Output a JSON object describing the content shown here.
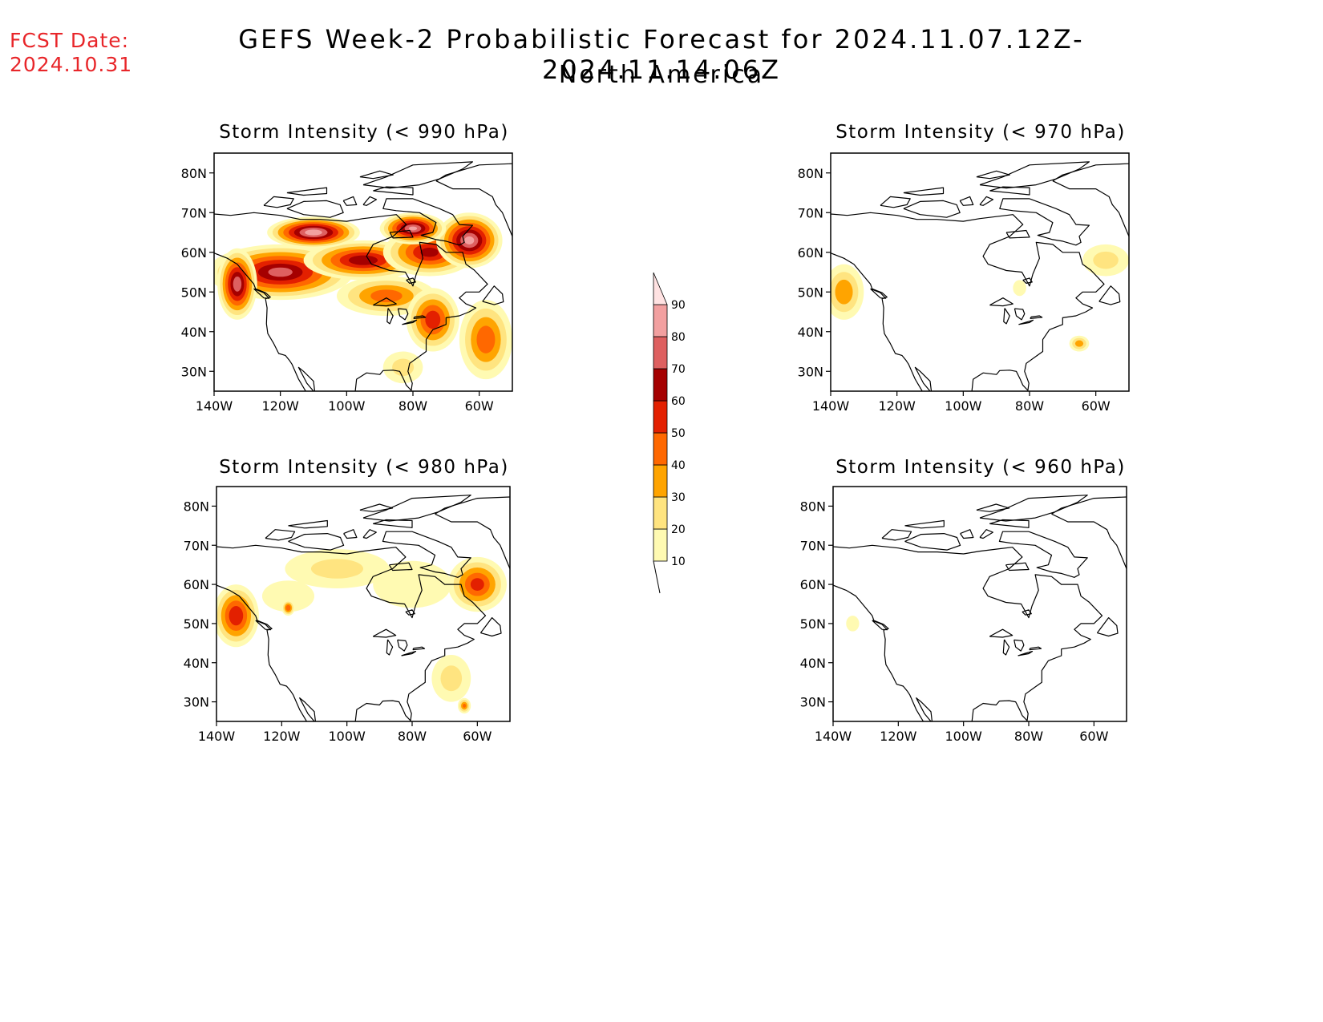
{
  "header": {
    "fcst_label": "FCST Date:",
    "fcst_date": "2024.10.31",
    "title": "GEFS Week-2 Probabilistic Forecast for 2024.11.07.12Z-2024.11.14.06Z",
    "subtitle": "North America"
  },
  "axes": {
    "lon_labels": [
      "140W",
      "120W",
      "100W",
      "80W",
      "60W"
    ],
    "lon_values": [
      -140,
      -120,
      -100,
      -80,
      -60
    ],
    "lat_labels": [
      "80N",
      "70N",
      "60N",
      "50N",
      "40N",
      "30N"
    ],
    "lat_values": [
      80,
      70,
      60,
      50,
      40,
      30
    ],
    "lon_range": [
      -140,
      -50
    ],
    "lat_range": [
      25,
      85
    ]
  },
  "colorbar": {
    "levels": [
      10,
      20,
      30,
      40,
      50,
      60,
      70,
      80,
      90
    ],
    "labels": [
      "10",
      "20",
      "30",
      "40",
      "50",
      "60",
      "70",
      "80",
      "90"
    ],
    "colors": [
      "#fffab2",
      "#ffe480",
      "#ffa400",
      "#ff6800",
      "#e32000",
      "#a50000",
      "#de6060",
      "#f2a0a0",
      "#ffe2e2"
    ]
  },
  "panels": [
    {
      "title": "Storm Intensity (< 990 hPa)",
      "blobs": [
        {
          "lon": -120,
          "lat": 55,
          "rlon": 22,
          "rlat": 7,
          "p": 72
        },
        {
          "lon": -95,
          "lat": 58,
          "rlon": 18,
          "rlat": 5,
          "p": 66
        },
        {
          "lon": -75,
          "lat": 60,
          "rlon": 14,
          "rlat": 6,
          "p": 62
        },
        {
          "lon": -63,
          "lat": 63,
          "rlon": 10,
          "rlat": 7,
          "p": 82
        },
        {
          "lon": -110,
          "lat": 65,
          "rlon": 14,
          "rlat": 4,
          "p": 86
        },
        {
          "lon": -80,
          "lat": 66,
          "rlon": 10,
          "rlat": 4,
          "p": 80
        },
        {
          "lon": -133,
          "lat": 52,
          "rlon": 6,
          "rlat": 9,
          "p": 76
        },
        {
          "lon": -88,
          "lat": 49,
          "rlon": 15,
          "rlat": 5,
          "p": 44
        },
        {
          "lon": -74,
          "lat": 43,
          "rlon": 8,
          "rlat": 8,
          "p": 56
        },
        {
          "lon": -58,
          "lat": 38,
          "rlon": 8,
          "rlat": 10,
          "p": 46
        },
        {
          "lon": -83,
          "lat": 31,
          "rlon": 6,
          "rlat": 4,
          "p": 22
        }
      ]
    },
    {
      "title": "Storm Intensity (< 970 hPa)",
      "blobs": [
        {
          "lon": -136,
          "lat": 50,
          "rlon": 6,
          "rlat": 7,
          "p": 36
        },
        {
          "lon": -57,
          "lat": 58,
          "rlon": 7,
          "rlat": 4,
          "p": 22
        },
        {
          "lon": -65,
          "lat": 37,
          "rlon": 3,
          "rlat": 2,
          "p": 34
        },
        {
          "lon": -83,
          "lat": 51,
          "rlon": 2,
          "rlat": 2,
          "p": 14
        }
      ]
    },
    {
      "title": "Storm Intensity (< 980 hPa)",
      "blobs": [
        {
          "lon": -134,
          "lat": 52,
          "rlon": 7,
          "rlat": 8,
          "p": 58
        },
        {
          "lon": -60,
          "lat": 60,
          "rlon": 9,
          "rlat": 7,
          "p": 52
        },
        {
          "lon": -103,
          "lat": 64,
          "rlon": 16,
          "rlat": 5,
          "p": 20
        },
        {
          "lon": -80,
          "lat": 60,
          "rlon": 12,
          "rlat": 6,
          "p": 18
        },
        {
          "lon": -118,
          "lat": 57,
          "rlon": 8,
          "rlat": 4,
          "p": 14
        },
        {
          "lon": -68,
          "lat": 36,
          "rlon": 6,
          "rlat": 6,
          "p": 22
        },
        {
          "lon": -64,
          "lat": 29,
          "rlon": 2,
          "rlat": 2,
          "p": 40
        },
        {
          "lon": -118,
          "lat": 54,
          "rlon": 2,
          "rlat": 2,
          "p": 48
        }
      ]
    },
    {
      "title": "Storm Intensity (< 960 hPa)",
      "blobs": [
        {
          "lon": -134,
          "lat": 50,
          "rlon": 2,
          "rlat": 2,
          "p": 16
        }
      ]
    }
  ],
  "coastlines": {
    "north_america": [
      [
        -168,
        65
      ],
      [
        -162,
        70
      ],
      [
        -156,
        71.3
      ],
      [
        -147,
        70.3
      ],
      [
        -141,
        69.7
      ],
      [
        -135,
        69.3
      ],
      [
        -128,
        70
      ],
      [
        -120,
        69.3
      ],
      [
        -114,
        68.3
      ],
      [
        -108,
        68.3
      ],
      [
        -100,
        67.8
      ],
      [
        -95,
        68.5
      ],
      [
        -90,
        69
      ],
      [
        -85,
        69.5
      ],
      [
        -82,
        67
      ],
      [
        -86,
        64
      ],
      [
        -92,
        62
      ],
      [
        -94,
        59
      ],
      [
        -92.5,
        57
      ],
      [
        -87,
        55.4
      ],
      [
        -82.3,
        55
      ],
      [
        -80,
        51.5
      ],
      [
        -79,
        54.5
      ],
      [
        -77,
        58.5
      ],
      [
        -78,
        62.5
      ],
      [
        -73,
        62
      ],
      [
        -70,
        60
      ],
      [
        -65,
        60
      ],
      [
        -64,
        57
      ],
      [
        -61.5,
        55.5
      ],
      [
        -57.5,
        52
      ],
      [
        -60,
        50
      ],
      [
        -64,
        50
      ],
      [
        -66,
        48.5
      ],
      [
        -64,
        47
      ],
      [
        -61,
        46
      ],
      [
        -63,
        45
      ],
      [
        -66,
        44
      ],
      [
        -70,
        43.5
      ],
      [
        -70,
        41.8
      ],
      [
        -74,
        40.5
      ],
      [
        -76,
        38
      ],
      [
        -76,
        35
      ],
      [
        -78,
        33.8
      ],
      [
        -81,
        32
      ],
      [
        -81.5,
        30
      ],
      [
        -80.2,
        27
      ],
      [
        -80.5,
        25.2
      ],
      [
        -82,
        26.5
      ],
      [
        -82.8,
        28
      ],
      [
        -84,
        30
      ],
      [
        -86,
        30.3
      ],
      [
        -89,
        30.2
      ],
      [
        -90,
        29.2
      ],
      [
        -94,
        29.6
      ],
      [
        -97,
        28
      ],
      [
        -97.4,
        25
      ],
      [
        -97.5,
        22
      ],
      [
        -97,
        19
      ],
      [
        -92,
        18.5
      ],
      [
        -90.5,
        21
      ],
      [
        -87,
        21.5
      ],
      [
        -88,
        18
      ],
      [
        -88.5,
        16
      ],
      [
        -84,
        15.5
      ],
      [
        -83.5,
        11
      ],
      [
        -82,
        9
      ],
      [
        -79,
        9.3
      ],
      [
        -77.5,
        8
      ],
      [
        -80,
        7
      ],
      [
        -83,
        8.5
      ],
      [
        -86,
        11
      ],
      [
        -88,
        13
      ],
      [
        -92,
        14.5
      ],
      [
        -95,
        16
      ],
      [
        -100,
        17
      ],
      [
        -105,
        20
      ],
      [
        -105.5,
        23
      ],
      [
        -109,
        24
      ],
      [
        -112,
        27
      ],
      [
        -114.5,
        31
      ],
      [
        -113,
        30
      ],
      [
        -110,
        27.5
      ],
      [
        -109.5,
        24
      ],
      [
        -112,
        24.5
      ],
      [
        -114.5,
        28
      ],
      [
        -116.5,
        31.8
      ],
      [
        -117.2,
        32.7
      ],
      [
        -118.5,
        34
      ],
      [
        -120.5,
        34.5
      ],
      [
        -122,
        37
      ],
      [
        -123.8,
        39.5
      ],
      [
        -124.2,
        42
      ],
      [
        -124,
        46
      ],
      [
        -124.5,
        48.3
      ],
      [
        -123,
        48.7
      ],
      [
        -124.5,
        49.8
      ],
      [
        -127.5,
        50.8
      ],
      [
        -128,
        52
      ],
      [
        -130,
        54
      ],
      [
        -133,
        57
      ],
      [
        -136,
        58.5
      ],
      [
        -140,
        59.8
      ],
      [
        -146,
        61
      ],
      [
        -150,
        60
      ],
      [
        -152,
        58
      ],
      [
        -156,
        57
      ],
      [
        -160,
        56
      ],
      [
        -163,
        55
      ],
      [
        -160,
        58.5
      ],
      [
        -164,
        60
      ],
      [
        -165,
        62.5
      ],
      [
        -168,
        65
      ]
    ],
    "baffin": [
      [
        -80,
        73.5
      ],
      [
        -72,
        71
      ],
      [
        -68,
        69.5
      ],
      [
        -66,
        67
      ],
      [
        -62,
        66.8
      ],
      [
        -65,
        64
      ],
      [
        -64.5,
        62.5
      ],
      [
        -66,
        61.8
      ],
      [
        -70,
        62.8
      ],
      [
        -73,
        63.2
      ],
      [
        -77.5,
        64.3
      ],
      [
        -74,
        65
      ],
      [
        -73,
        67.5
      ],
      [
        -78,
        70
      ],
      [
        -85,
        70.5
      ],
      [
        -89,
        71
      ],
      [
        -88,
        73.5
      ],
      [
        -80,
        73.5
      ]
    ],
    "victoria": [
      [
        -118,
        71
      ],
      [
        -113,
        72.8
      ],
      [
        -106,
        73
      ],
      [
        -102,
        72
      ],
      [
        -101,
        70
      ],
      [
        -105,
        68.8
      ],
      [
        -113,
        69.5
      ],
      [
        -118,
        71
      ]
    ],
    "banks": [
      [
        -125,
        71.8
      ],
      [
        -122,
        74
      ],
      [
        -116,
        73.5
      ],
      [
        -117,
        72
      ],
      [
        -121,
        71.3
      ],
      [
        -125,
        71.8
      ]
    ],
    "ellesmere": [
      [
        -95,
        77
      ],
      [
        -88,
        79
      ],
      [
        -80,
        82
      ],
      [
        -62,
        82.8
      ],
      [
        -65,
        81
      ],
      [
        -72,
        78.5
      ],
      [
        -78,
        77
      ],
      [
        -87,
        76.2
      ],
      [
        -95,
        77
      ]
    ],
    "devon": [
      [
        -92,
        75.5
      ],
      [
        -80,
        74.5
      ],
      [
        -80,
        76.3
      ],
      [
        -88,
        76.5
      ],
      [
        -92,
        75.5
      ]
    ],
    "somerset": [
      [
        -95,
        72
      ],
      [
        -93,
        74
      ],
      [
        -91,
        73.3
      ],
      [
        -94,
        71.8
      ],
      [
        -95,
        72
      ]
    ],
    "prince_wales": [
      [
        -101,
        73
      ],
      [
        -98,
        74
      ],
      [
        -97,
        72
      ],
      [
        -100,
        71.8
      ],
      [
        -101,
        73
      ]
    ],
    "melville": [
      [
        -118,
        75
      ],
      [
        -106,
        76.3
      ],
      [
        -106,
        74.8
      ],
      [
        -113,
        74.4
      ],
      [
        -118,
        75
      ]
    ],
    "axel": [
      [
        -96,
        79
      ],
      [
        -90,
        80.5
      ],
      [
        -86,
        79.5
      ],
      [
        -92,
        78.6
      ],
      [
        -96,
        79
      ]
    ],
    "southampton": [
      [
        -87,
        65
      ],
      [
        -81,
        65.5
      ],
      [
        -80,
        63.8
      ],
      [
        -86,
        63.6
      ],
      [
        -87,
        65
      ]
    ],
    "greenland": [
      [
        -73,
        78
      ],
      [
        -68,
        76
      ],
      [
        -60,
        76
      ],
      [
        -56,
        74
      ],
      [
        -55,
        72
      ],
      [
        -53,
        70
      ],
      [
        -52,
        68
      ],
      [
        -50,
        64
      ],
      [
        -48,
        61
      ],
      [
        -44,
        60
      ],
      [
        -35,
        67
      ],
      [
        -22,
        70
      ],
      [
        -18,
        76
      ],
      [
        -20,
        80
      ],
      [
        -30,
        83
      ],
      [
        -45,
        82.5
      ],
      [
        -60,
        82
      ],
      [
        -70,
        79.5
      ],
      [
        -73,
        78
      ]
    ],
    "newfoundland": [
      [
        -59,
        47.6
      ],
      [
        -55.5,
        51.5
      ],
      [
        -53,
        49.5
      ],
      [
        -52.7,
        47.5
      ],
      [
        -55.5,
        46.8
      ],
      [
        -59,
        47.6
      ]
    ],
    "vancouver": [
      [
        -128,
        50.8
      ],
      [
        -125,
        48.5
      ],
      [
        -123.4,
        48.4
      ],
      [
        -125,
        49.8
      ],
      [
        -128,
        50.8
      ]
    ],
    "great_lakes": [
      [
        [
          -92,
          46.7
        ],
        [
          -88,
          48.5
        ],
        [
          -85,
          47
        ],
        [
          -88,
          46.5
        ],
        [
          -92,
          46.7
        ]
      ],
      [
        [
          -87.5,
          45.9
        ],
        [
          -86,
          44
        ],
        [
          -87,
          42
        ],
        [
          -87.8,
          42.5
        ],
        [
          -87.5,
          45.9
        ]
      ],
      [
        [
          -84.5,
          45.8
        ],
        [
          -82,
          45.6
        ],
        [
          -81.5,
          44.5
        ],
        [
          -82.4,
          43
        ],
        [
          -84,
          44
        ],
        [
          -84.5,
          45.8
        ]
      ],
      [
        [
          -83.3,
          41.8
        ],
        [
          -80,
          42.3
        ],
        [
          -78.9,
          42.9
        ],
        [
          -81,
          42.4
        ],
        [
          -83.3,
          41.8
        ]
      ],
      [
        [
          -79.8,
          43.3
        ],
        [
          -76.2,
          43.6
        ],
        [
          -77,
          44
        ],
        [
          -79.5,
          43.7
        ],
        [
          -79.8,
          43.3
        ]
      ]
    ],
    "hudson_islands": [
      [
        -82,
        53
      ],
      [
        -80,
        53.5
      ],
      [
        -79.2,
        52.5
      ],
      [
        -81,
        52.2
      ],
      [
        -82,
        53
      ]
    ]
  }
}
